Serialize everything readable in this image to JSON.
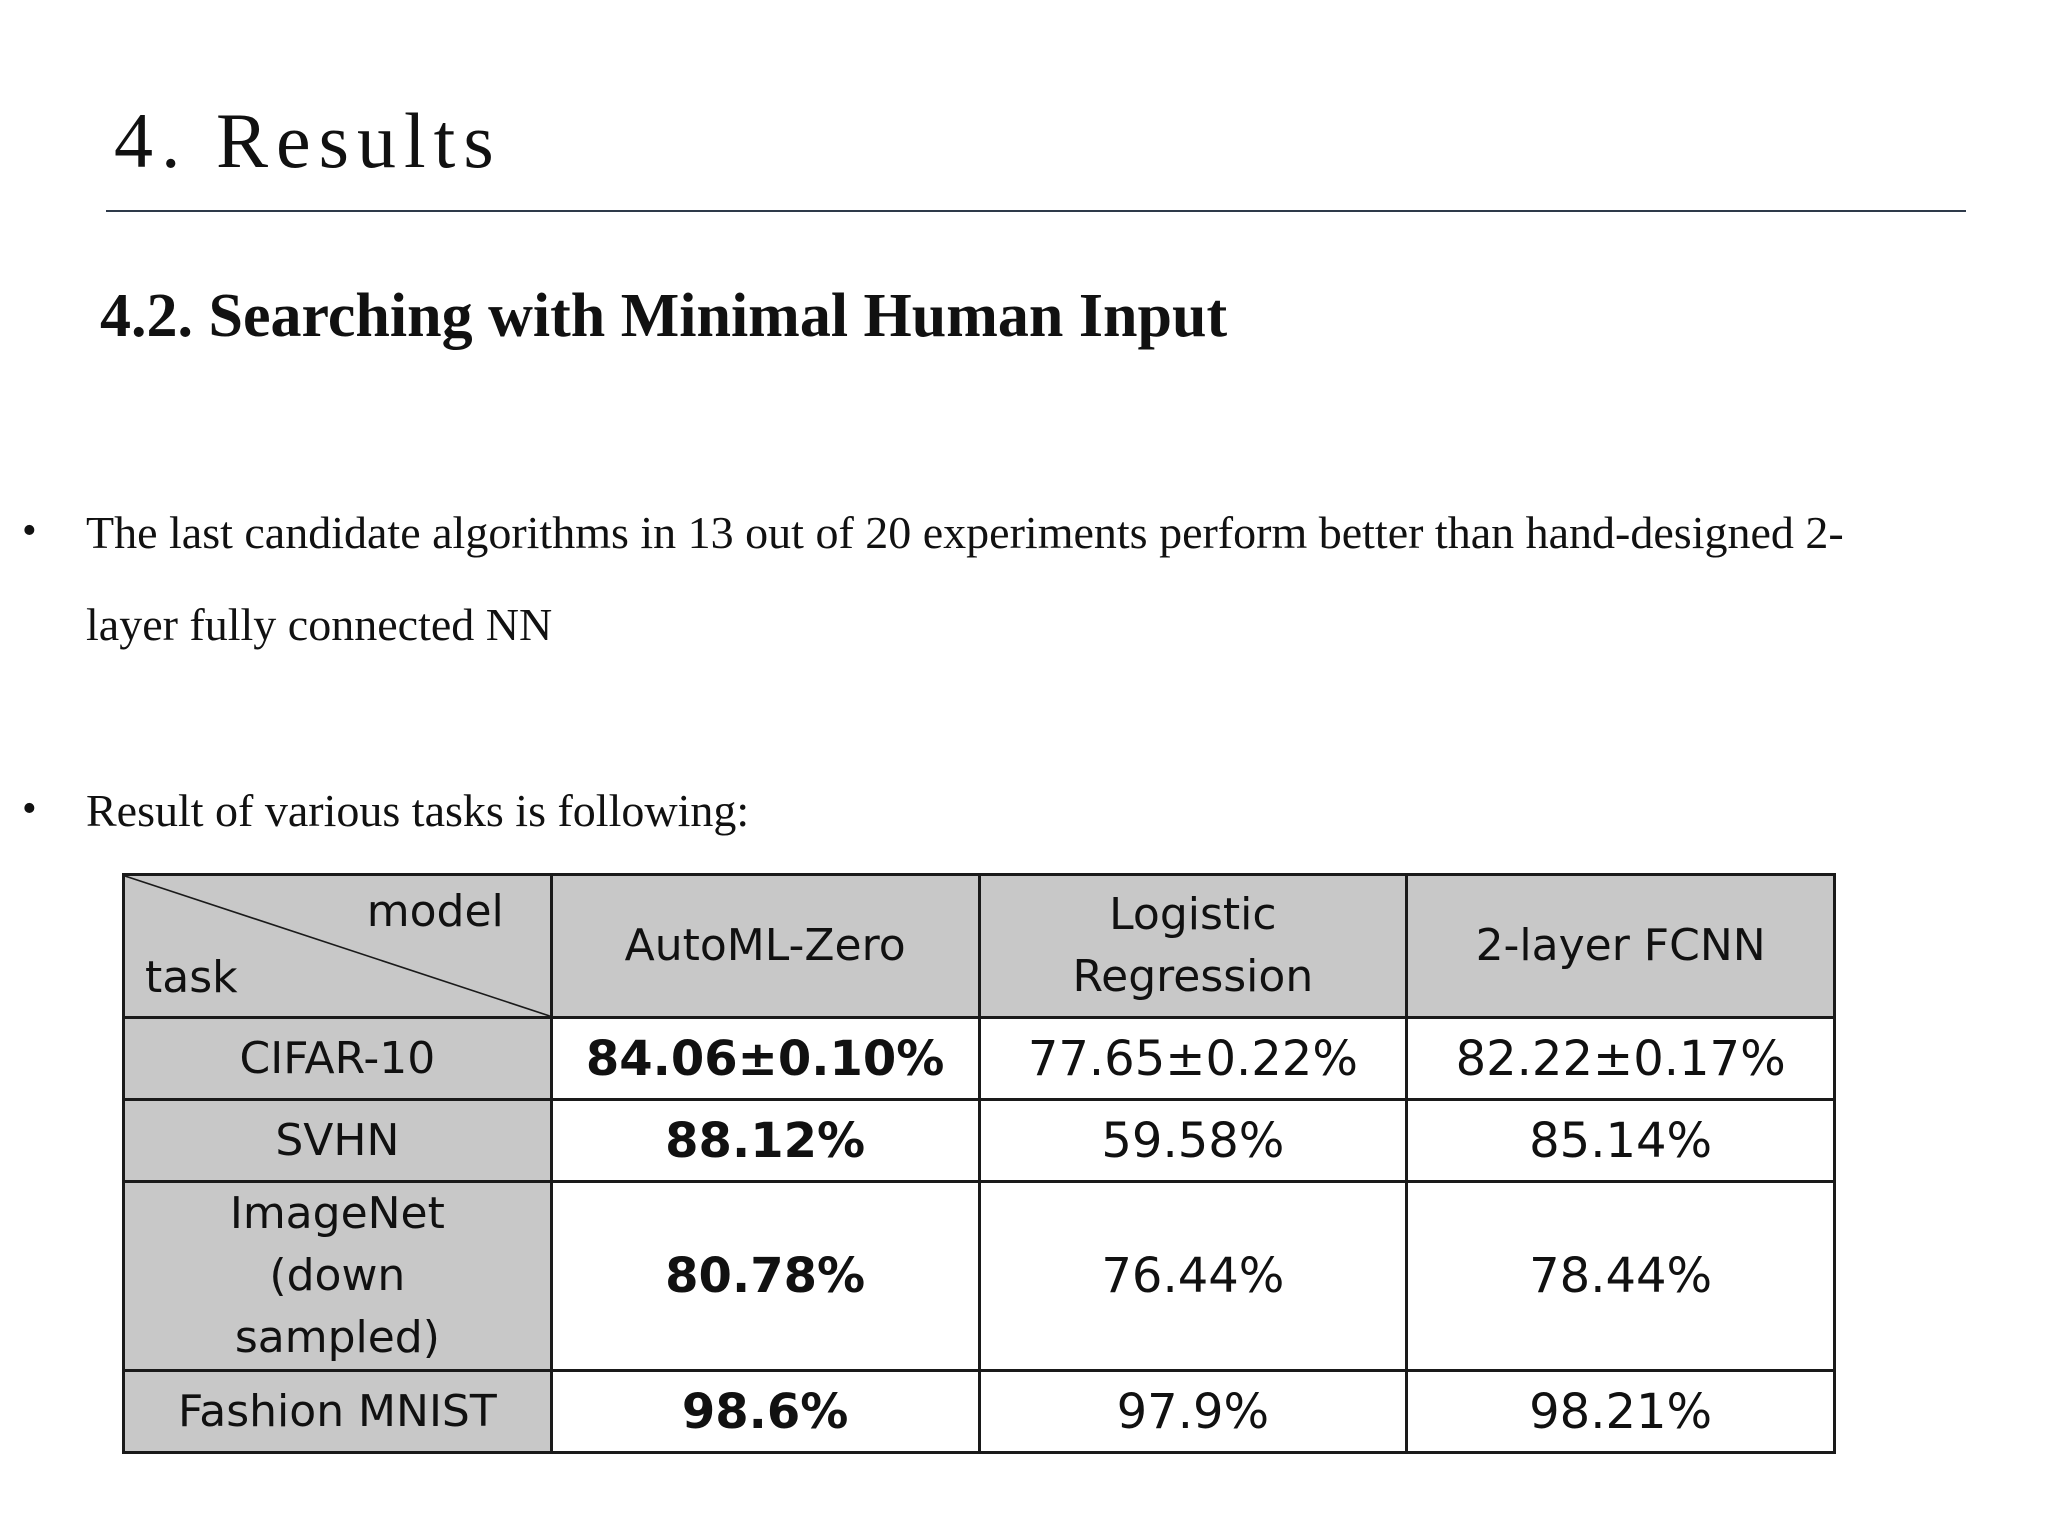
{
  "slide": {
    "section_title": "4. Results",
    "subsection_title": "4.2. Searching with Minimal Human Input",
    "bullets": [
      "The last candidate algorithms in 13 out of 20 experiments perform better than hand-designed 2-layer fully connected NN",
      "Result of various tasks is following:"
    ],
    "bullet_symbol": "•"
  },
  "table": {
    "corner": {
      "model_label": "model",
      "task_label": "task"
    },
    "columns": [
      "AutoML-Zero",
      "Logistic Regression",
      "2-layer FCNN"
    ],
    "rows": [
      {
        "task": "CIFAR-10",
        "values": [
          "84.06±0.10%",
          "77.65±0.22%",
          "82.22±0.17%"
        ]
      },
      {
        "task": "SVHN",
        "values": [
          "88.12%",
          "59.58%",
          "85.14%"
        ]
      },
      {
        "task": "ImageNet (down sampled)",
        "values": [
          "80.78%",
          "76.44%",
          "78.44%"
        ]
      },
      {
        "task": "Fashion MNIST",
        "values": [
          "98.6%",
          "97.9%",
          "98.21%"
        ]
      }
    ],
    "bold_column": "AutoML-Zero",
    "header_fill": "#c8c8c8"
  }
}
